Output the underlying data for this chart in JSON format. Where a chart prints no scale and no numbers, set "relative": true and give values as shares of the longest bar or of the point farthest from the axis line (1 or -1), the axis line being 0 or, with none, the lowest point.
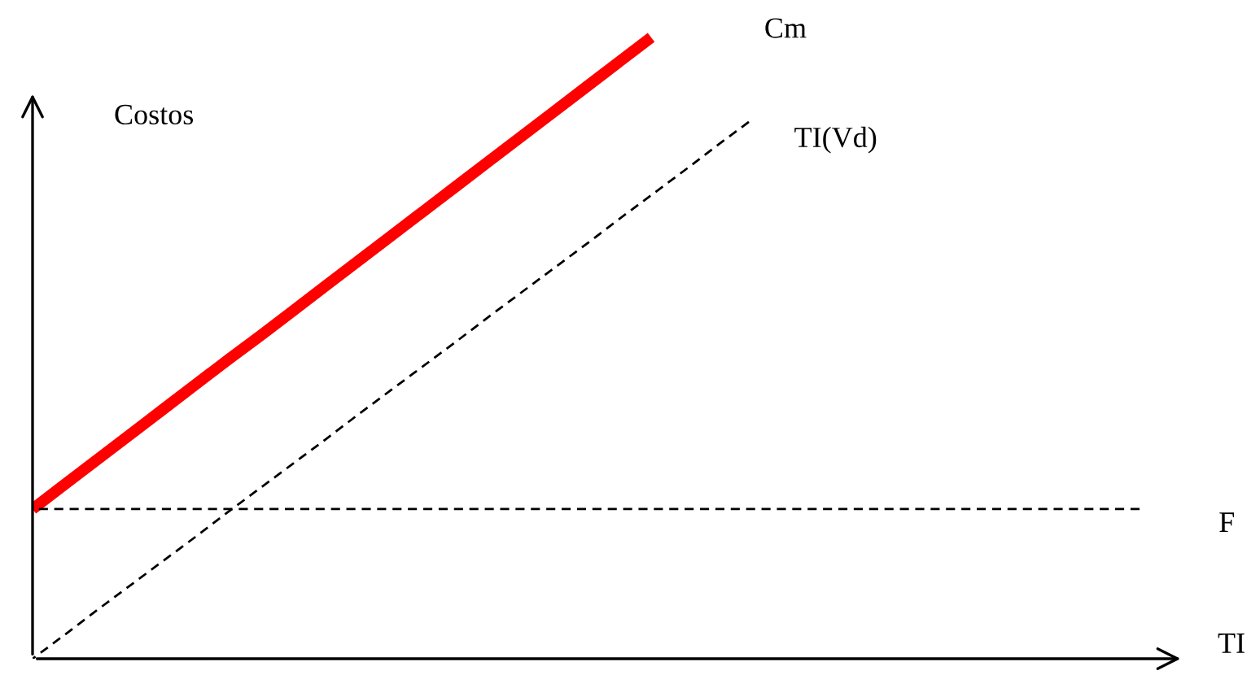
{
  "chart_data": {
    "type": "line",
    "relative": true,
    "ylabel": "Costos",
    "xlabel": "TI",
    "marker": "none",
    "categories": [
      null,
      null,
      null,
      null,
      null,
      null,
      null,
      null,
      null,
      null,
      null,
      null,
      null,
      null,
      null,
      null,
      null,
      null,
      null,
      null,
      null,
      null,
      null,
      null,
      null,
      null,
      null,
      null,
      null,
      null,
      null,
      null,
      null,
      null,
      null
    ],
    "series": [
      {
        "name": "Cm",
        "color": "#ff0000",
        "line_style": "solid",
        "values": [
          0.241,
          0.281,
          0.321,
          0.361,
          0.401,
          0.441,
          0.481,
          0.52,
          0.56,
          0.6,
          0.64,
          0.68,
          0.72,
          0.76,
          0.8,
          0.84,
          0.88,
          0.92,
          0.96,
          1.0,
          null,
          null,
          null,
          null,
          null,
          null,
          null,
          null,
          null,
          null,
          null,
          null,
          null,
          null,
          null
        ]
      },
      {
        "name": "TI(Vd)",
        "color": "#000000",
        "line_style": "dashed",
        "values": [
          0,
          0.039,
          0.079,
          0.118,
          0.157,
          0.196,
          0.236,
          0.275,
          0.314,
          0.353,
          0.393,
          0.432,
          0.471,
          0.51,
          0.55,
          0.589,
          0.628,
          0.667,
          0.707,
          0.746,
          0.785,
          0.825,
          0.864,
          null,
          null,
          null,
          null,
          null,
          null,
          null,
          null,
          null,
          null,
          null,
          null
        ]
      },
      {
        "name": "F",
        "color": "#000000",
        "line_style": "dashed",
        "values": [
          0.241,
          0.241,
          0.241,
          0.241,
          0.241,
          0.241,
          0.241,
          0.241,
          0.241,
          0.241,
          0.241,
          0.241,
          0.241,
          0.241,
          0.241,
          0.241,
          0.241,
          0.241,
          0.241,
          0.241,
          0.241,
          0.241,
          0.241,
          0.241,
          0.241,
          0.241,
          0.241,
          0.241,
          0.241,
          0.241,
          0.241,
          0.241,
          0.241,
          0.241,
          0.241
        ]
      }
    ]
  }
}
